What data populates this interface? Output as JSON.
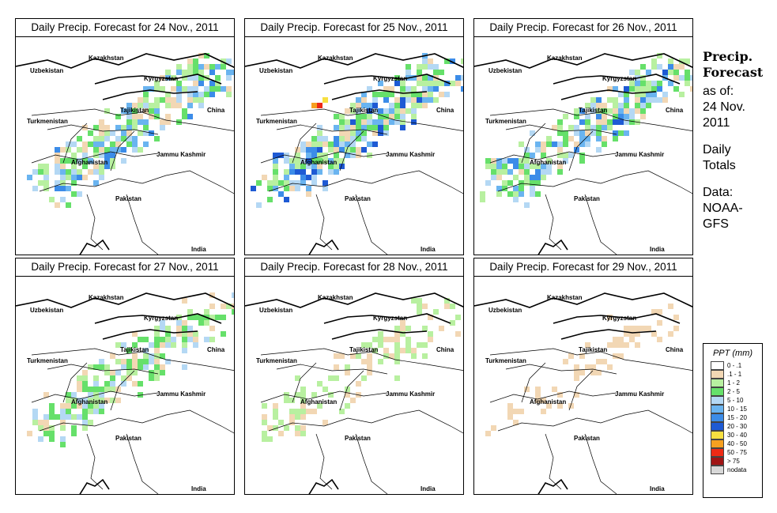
{
  "panels": [
    {
      "title": "Daily Precip. Forecast for  24 Nov., 2011",
      "date": "24 Nov., 2011",
      "intensity": 0.85
    },
    {
      "title": "Daily Precip. Forecast for  25 Nov., 2011",
      "date": "25 Nov., 2011",
      "intensity": 1.0
    },
    {
      "title": "Daily Precip. Forecast for  26 Nov., 2011",
      "date": "26 Nov., 2011",
      "intensity": 0.9
    },
    {
      "title": "Daily Precip. Forecast for  27 Nov., 2011",
      "date": "27 Nov., 2011",
      "intensity": 0.65
    },
    {
      "title": "Daily Precip. Forecast for  28 Nov., 2011",
      "date": "28 Nov., 2011",
      "intensity": 0.3
    },
    {
      "title": "Daily Precip. Forecast for  29 Nov., 2011",
      "date": "29 Nov., 2011",
      "intensity": 0.08
    }
  ],
  "map_labels": {
    "kazakhstan": "Kazakhstan",
    "uzbekistan": "Uzbekistan",
    "kyrgyzstan": "Kyrgyzstan",
    "tajikistan": "Tajikistan",
    "china": "China",
    "turkmenistan": "Turkmenistan",
    "jammu_kashmir": "Jammu Kashmir",
    "afghanistan": "Afghanistan",
    "pakistan": "Pakistan",
    "india": "India"
  },
  "side": {
    "heading": "Precip. Forecast",
    "as_of": "as of:\n24 Nov.\n2011",
    "totals": "Daily\nTotals",
    "data_source": "Data:\nNOAA-\nGFS"
  },
  "legend": {
    "title": "PPT (mm)",
    "items": [
      {
        "label": "0 - .1",
        "color": "#ffffff"
      },
      {
        "label": ".1 - 1",
        "color": "#f2d7b4"
      },
      {
        "label": "1 - 2",
        "color": "#b8f0a0"
      },
      {
        "label": "2 - 5",
        "color": "#66e06a"
      },
      {
        "label": "5 - 10",
        "color": "#b4d8f4"
      },
      {
        "label": "10 - 15",
        "color": "#6ab4f0"
      },
      {
        "label": "15 - 20",
        "color": "#3c8ce8"
      },
      {
        "label": "20 - 30",
        "color": "#1e5ad4"
      },
      {
        "label": "30 - 40",
        "color": "#f7e040"
      },
      {
        "label": "40 - 50",
        "color": "#f6a020"
      },
      {
        "label": "50 - 75",
        "color": "#ee2a14"
      },
      {
        "label": "> 75",
        "color": "#a01414"
      },
      {
        "label": "nodata",
        "color": "#d8d8d8"
      }
    ]
  }
}
